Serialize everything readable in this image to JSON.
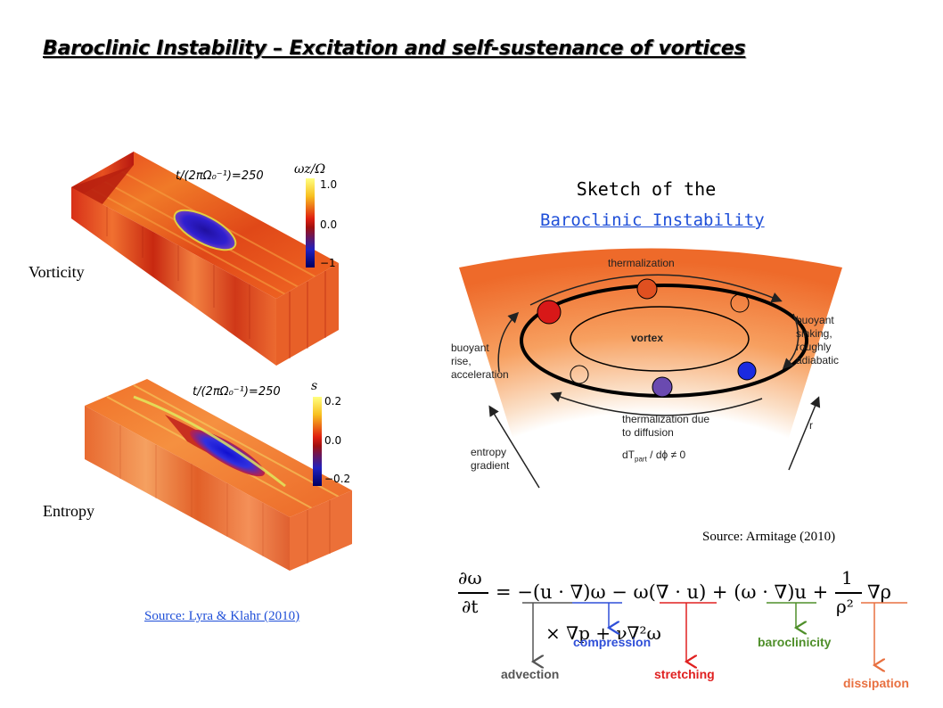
{
  "slide": {
    "title": "Baroclinic Instability – Excitation and self-sustenance of vortices"
  },
  "simulation": {
    "vorticity_label": "Vorticity",
    "entropy_label": "Entropy",
    "vorticity_time": "t/(2πΩ₀⁻¹)=250",
    "entropy_time": "t/(2πΩ₀⁻¹)=250",
    "vorticity_colorbar": {
      "label": "ωz/Ω",
      "ticks": [
        "1.0",
        "0.0",
        "−1"
      ]
    },
    "entropy_colorbar": {
      "label": "s",
      "ticks": [
        "0.2",
        "0.0",
        "−0.2"
      ]
    },
    "source": "Source: Lyra & Klahr (2010)"
  },
  "sketch": {
    "heading": "Sketch of the",
    "link": "Baroclinic Instability",
    "labels": {
      "thermalization": "thermalization",
      "vortex": "vortex",
      "buoyant_sinking": [
        "buoyant",
        "sinking,",
        "roughly",
        "adiabatic"
      ],
      "buoyant_rise": [
        "buoyant",
        "rise,",
        "acceleration"
      ],
      "thermalization_diffusion": [
        "thermalization due",
        "to diffusion"
      ],
      "gradient_eq": "dT",
      "gradient_eq_sub": "part",
      "gradient_eq_rest": "/ dϕ ≠ 0",
      "entropy_gradient": [
        "entropy",
        "gradient"
      ],
      "r": "r"
    },
    "source": "Source: Armitage (2010)"
  },
  "equation": {
    "lhs_num": "∂ω",
    "lhs_den": "∂t",
    "rhs_main": "= −(u · ∇)ω − ω(∇ · u) + (ω · ∇)u +",
    "frac_num": "1",
    "frac_den": "ρ²",
    "grad_rho": "∇ρ",
    "line2": "× ∇p + ν∇²ω",
    "terms": {
      "advection": "advection",
      "compression": "compression",
      "stretching": "stretching",
      "baroclinicity": "baroclinicity",
      "dissipation": "dissipation"
    },
    "colors": {
      "advection": "#555555",
      "compression": "#2f4fd8",
      "stretching": "#e02020",
      "baroclinicity": "#4f8f2a",
      "dissipation": "#e87040"
    }
  }
}
